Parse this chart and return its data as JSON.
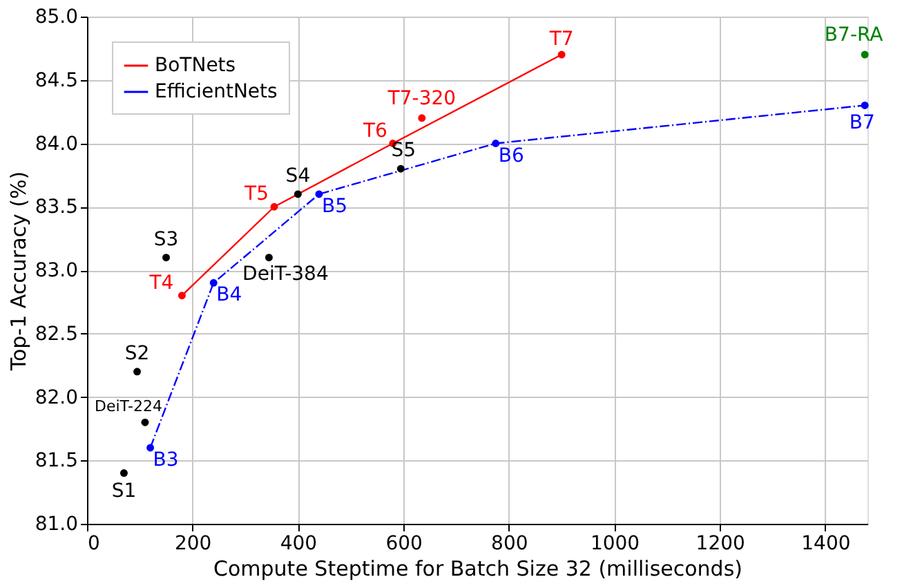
{
  "chart_data": {
    "type": "scatter",
    "xlabel": "Compute Steptime for Batch Size 32 (milliseconds)",
    "ylabel": "Top-1 Accuracy (%)",
    "xlim": [
      0,
      1480
    ],
    "xticks": [
      0,
      200,
      400,
      600,
      800,
      1000,
      1200,
      1400
    ],
    "ylim": [
      81.0,
      85.0
    ],
    "yticks": [
      {
        "value": 81.0,
        "label": "81.0"
      },
      {
        "value": 81.5,
        "label": "81.5"
      },
      {
        "value": 82.0,
        "label": "82.0"
      },
      {
        "value": 82.5,
        "label": "82.5"
      },
      {
        "value": 83.0,
        "label": "83.0"
      },
      {
        "value": 83.5,
        "label": "83.5"
      },
      {
        "value": 84.0,
        "label": "84.0"
      },
      {
        "value": 84.5,
        "label": "84.5"
      },
      {
        "value": 85.0,
        "label": "85.0"
      }
    ],
    "grid": true,
    "legend": "top left",
    "marker": "circle",
    "series": [
      {
        "name": "BoTNets",
        "type": "line",
        "line_style": "solid",
        "color": "#ff0000",
        "x": [
          180,
          355,
          580,
          900
        ],
        "values": [
          82.8,
          83.5,
          84.0,
          84.7
        ]
      },
      {
        "name": "EfficientNets",
        "type": "line",
        "line_style": "dashdot",
        "color": "#0000ff",
        "x": [
          120,
          240,
          440,
          775,
          1475
        ],
        "values": [
          81.6,
          82.9,
          83.6,
          84.0,
          84.3
        ]
      },
      {
        "color": "#ff0000",
        "x": [
          635
        ],
        "values": [
          84.2
        ]
      },
      {
        "color": "#008000",
        "x": [
          1475
        ],
        "values": [
          84.7
        ]
      },
      {
        "color": "#000000",
        "x": [
          70,
          95,
          110,
          150,
          345,
          400,
          595
        ],
        "values": [
          81.4,
          82.2,
          81.8,
          83.1,
          83.1,
          83.6,
          83.8
        ]
      }
    ],
    "annotations": [
      {
        "text": "T4",
        "x": 180,
        "y": 82.8
      },
      {
        "text": "T5",
        "x": 355,
        "y": 83.5
      },
      {
        "text": "T6",
        "x": 580,
        "y": 84.0
      },
      {
        "text": "T7",
        "x": 900,
        "y": 84.7
      },
      {
        "text": "T7-320",
        "x": 635,
        "y": 84.2
      },
      {
        "text": "B3",
        "x": 120,
        "y": 81.6
      },
      {
        "text": "B4",
        "x": 240,
        "y": 82.9
      },
      {
        "text": "B5",
        "x": 440,
        "y": 83.6
      },
      {
        "text": "B6",
        "x": 775,
        "y": 84.0
      },
      {
        "text": "B7",
        "x": 1475,
        "y": 84.3
      },
      {
        "text": "B7-RA",
        "x": 1475,
        "y": 84.7
      },
      {
        "text": "S1",
        "x": 70,
        "y": 81.4
      },
      {
        "text": "S2",
        "x": 95,
        "y": 82.2
      },
      {
        "text": "DeiT-224",
        "x": 110,
        "y": 81.8
      },
      {
        "text": "S3",
        "x": 150,
        "y": 83.1
      },
      {
        "text": "DeiT-384",
        "x": 345,
        "y": 83.1
      },
      {
        "text": "S4",
        "x": 400,
        "y": 83.6
      },
      {
        "text": "S5",
        "x": 595,
        "y": 83.8
      }
    ]
  }
}
